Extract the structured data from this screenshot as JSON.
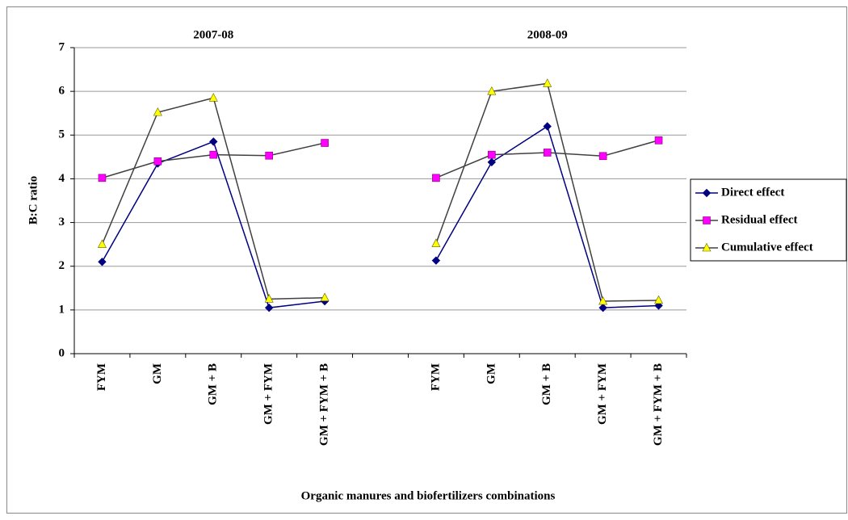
{
  "chart_data": {
    "type": "line",
    "annotations": [
      "2007-08",
      "2008-09"
    ],
    "y_label": "B:C ratio",
    "x_label": "Organic manures and biofertilizers combinations",
    "categories": [
      "FYM",
      "GM",
      "GM + B",
      "GM + FYM",
      "GM + FYM + B",
      null,
      "FYM",
      "GM",
      "GM + B",
      "GM + FYM",
      "GM + FYM + B"
    ],
    "series": [
      {
        "name": "Direct effect",
        "color": "#000080",
        "line_color": "#000080",
        "marker": "diamond",
        "values": [
          2.1,
          4.35,
          4.85,
          1.05,
          1.2,
          null,
          2.13,
          4.38,
          5.2,
          1.05,
          1.1
        ]
      },
      {
        "name": "Residual effect",
        "color": "#ff00ff",
        "line_color": "#404040",
        "marker": "square",
        "values": [
          4.02,
          4.4,
          4.55,
          4.53,
          4.82,
          null,
          4.02,
          4.55,
          4.6,
          4.52,
          4.88
        ]
      },
      {
        "name": "Cumulative effect",
        "color": "#ffff00",
        "line_color": "#404040",
        "marker": "triangle",
        "values": [
          2.5,
          5.52,
          5.85,
          1.25,
          1.28,
          null,
          2.52,
          6.0,
          6.18,
          1.2,
          1.22
        ]
      }
    ],
    "ylim": [
      0,
      7
    ],
    "yticks": [
      0,
      1,
      2,
      3,
      4,
      5,
      6,
      7
    ],
    "grid": true,
    "legend": "right"
  }
}
